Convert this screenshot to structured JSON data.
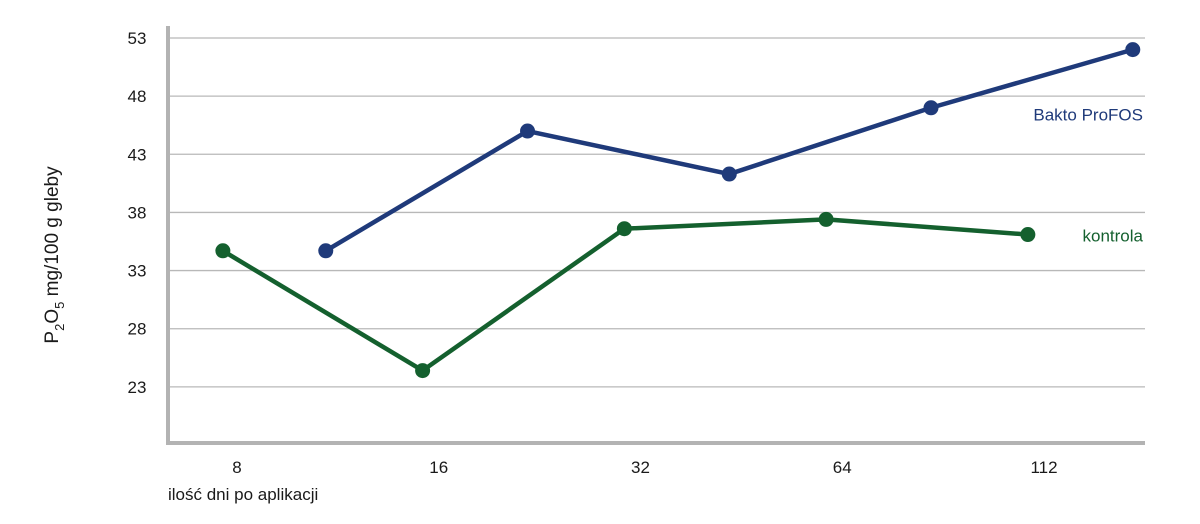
{
  "chart_data": {
    "type": "line",
    "title": "",
    "ylabel_parts": [
      "P",
      "2",
      "O",
      "5",
      " mg/100 g gleby"
    ],
    "xlabel": "ilość dni po aplikacji",
    "ylim": [
      18,
      53
    ],
    "y_ticks": [
      23,
      28,
      33,
      38,
      43,
      48,
      53
    ],
    "x_ticks": [
      {
        "label": "8",
        "pos": 0
      },
      {
        "label": "16",
        "pos": 1
      },
      {
        "label": "32",
        "pos": 2
      },
      {
        "label": "64",
        "pos": 3
      },
      {
        "label": "112",
        "pos": 4
      }
    ],
    "grid": true,
    "series": [
      {
        "name": "Bakto ProFOS",
        "color": "#1f3a7a",
        "x": [
          0.44,
          1.44,
          2.44,
          3.44,
          4.44
        ],
        "values": [
          34.7,
          45.0,
          41.3,
          47.0,
          52.0
        ]
      },
      {
        "name": "kontrola",
        "color": "#14602e",
        "x": [
          -0.07,
          0.92,
          1.92,
          2.92,
          3.92
        ],
        "values": [
          34.7,
          24.4,
          36.6,
          37.4,
          36.1
        ]
      }
    ]
  }
}
